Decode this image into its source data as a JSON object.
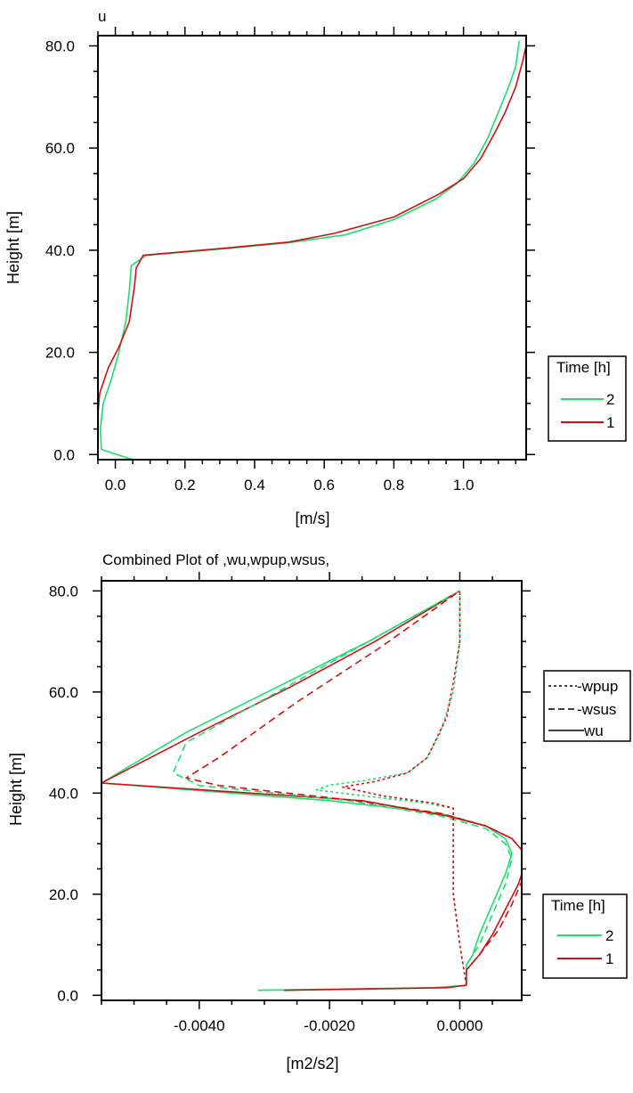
{
  "colors": {
    "time_2": "#18e070",
    "time_1": "#d01010",
    "axis": "#000000"
  },
  "chart_data": [
    {
      "type": "line",
      "title": "u",
      "xlabel": "[m/s]",
      "ylabel": "Height [m]",
      "xlim": [
        -0.05,
        1.18
      ],
      "ylim": [
        -1,
        82
      ],
      "x_ticks": [
        0.0,
        0.2,
        0.4,
        0.6,
        0.8,
        1.0
      ],
      "x_tick_labels": [
        "0.0",
        "0.2",
        "0.4",
        "0.6",
        "0.8",
        "1.0"
      ],
      "y_ticks": [
        0,
        20,
        40,
        60,
        80
      ],
      "y_tick_labels": [
        "0.0",
        "20.0",
        "40.0",
        "60.0",
        "80.0"
      ],
      "legend": {
        "title": "Time [h]",
        "entries": [
          "2",
          "1"
        ],
        "placement": "right"
      },
      "series": [
        {
          "name": "2",
          "color": "#18e070",
          "dash": "solid",
          "points": [
            [
              0.05,
              -1
            ],
            [
              -0.04,
              1
            ],
            [
              -0.043,
              5
            ],
            [
              -0.035,
              10
            ],
            [
              -0.01,
              15
            ],
            [
              0.01,
              20
            ],
            [
              0.03,
              26
            ],
            [
              0.04,
              32
            ],
            [
              0.046,
              37
            ],
            [
              0.09,
              39
            ],
            [
              0.3,
              40.2
            ],
            [
              0.5,
              41.5
            ],
            [
              0.66,
              43
            ],
            [
              0.8,
              46
            ],
            [
              0.92,
              50
            ],
            [
              0.98,
              53
            ],
            [
              1.03,
              57
            ],
            [
              1.07,
              62
            ],
            [
              1.1,
              67
            ],
            [
              1.13,
              72
            ],
            [
              1.15,
              76
            ],
            [
              1.16,
              81
            ]
          ]
        },
        {
          "name": "1",
          "color": "#d01010",
          "dash": "solid",
          "points": [
            [
              -0.05,
              8
            ],
            [
              -0.045,
              12
            ],
            [
              -0.02,
              17
            ],
            [
              0.01,
              21
            ],
            [
              0.04,
              26
            ],
            [
              0.055,
              33
            ],
            [
              0.06,
              36.5
            ],
            [
              0.08,
              39
            ],
            [
              0.3,
              40.3
            ],
            [
              0.5,
              41.6
            ],
            [
              0.63,
              43.3
            ],
            [
              0.8,
              46.5
            ],
            [
              0.93,
              51
            ],
            [
              1.0,
              54
            ],
            [
              1.05,
              58
            ],
            [
              1.09,
              63
            ],
            [
              1.12,
              67
            ],
            [
              1.15,
              72
            ],
            [
              1.17,
              77
            ],
            [
              1.18,
              80
            ]
          ]
        }
      ]
    },
    {
      "type": "line",
      "title": "Combined Plot of ,wu,wpup,wsus,",
      "xlabel": "[m2/s2]",
      "ylabel": "Height [m]",
      "xlim": [
        -0.0055,
        0.00095
      ],
      "ylim": [
        -1,
        82
      ],
      "x_ticks": [
        -0.004,
        -0.002,
        0.0
      ],
      "x_tick_labels": [
        "-0.0040",
        "-0.0020",
        "0.0000"
      ],
      "y_ticks": [
        0,
        20,
        40,
        60,
        80
      ],
      "y_tick_labels": [
        "0.0",
        "20.0",
        "40.0",
        "60.0",
        "80.0"
      ],
      "line_style_legend": {
        "entries": [
          {
            "label": "-wpup",
            "dash": "dotted"
          },
          {
            "label": "-wsus",
            "dash": "dashed"
          },
          {
            "label": "wu",
            "dash": "solid"
          }
        ],
        "placement": "right"
      },
      "legend": {
        "title": "Time [h]",
        "entries": [
          "2",
          "1"
        ],
        "placement": "bottom-right"
      },
      "series": [
        {
          "name": "wu 2",
          "color": "#18e070",
          "dash": "solid",
          "points": [
            [
              -0.0031,
              1
            ],
            [
              -0.0004,
              1.5
            ],
            [
              0.0001,
              2
            ],
            [
              0.0001,
              4
            ],
            [
              0.0001,
              6
            ],
            [
              0.0002,
              8
            ],
            [
              0.0003,
              12
            ],
            [
              0.0005,
              18
            ],
            [
              0.0007,
              24
            ],
            [
              0.0008,
              28
            ],
            [
              0.0007,
              31
            ],
            [
              0.0004,
              33.5
            ],
            [
              -0.0003,
              36
            ],
            [
              -0.002,
              38.5
            ],
            [
              -0.0055,
              42
            ],
            [
              -0.0042,
              52
            ],
            [
              -0.0028,
              61
            ],
            [
              -0.0014,
              70
            ],
            [
              0.0,
              80
            ]
          ]
        },
        {
          "name": "wu 1",
          "color": "#d01010",
          "dash": "solid",
          "points": [
            [
              -0.0027,
              1
            ],
            [
              -0.0002,
              1.5
            ],
            [
              0.0001,
              2
            ],
            [
              0.0001,
              5
            ],
            [
              0.0003,
              8
            ],
            [
              0.0005,
              12
            ],
            [
              0.0007,
              17
            ],
            [
              0.0009,
              22
            ],
            [
              0.001,
              26
            ],
            [
              0.001,
              28
            ],
            [
              0.0008,
              31
            ],
            [
              0.0004,
              33.5
            ],
            [
              -0.0002,
              35.5
            ],
            [
              -0.0015,
              38.5
            ],
            [
              -0.0055,
              42
            ],
            [
              -0.004,
              52
            ],
            [
              -0.0026,
              61
            ],
            [
              -0.0013,
              70
            ],
            [
              0.0,
              80
            ]
          ]
        },
        {
          "name": "wsus 2",
          "color": "#18e070",
          "dash": "dashed",
          "points": [
            [
              0.0001,
              2
            ],
            [
              0.0001,
              6
            ],
            [
              0.0003,
              10
            ],
            [
              0.0005,
              16
            ],
            [
              0.0007,
              22
            ],
            [
              0.0008,
              27
            ],
            [
              0.0007,
              30
            ],
            [
              0.0004,
              33
            ],
            [
              -0.0003,
              35.5
            ],
            [
              -0.0017,
              38.5
            ],
            [
              -0.004,
              41.5
            ],
            [
              -0.0044,
              44
            ],
            [
              -0.0042,
              50
            ],
            [
              -0.0028,
              60
            ],
            [
              -0.0014,
              70
            ],
            [
              0.0,
              80
            ]
          ]
        },
        {
          "name": "wsus 1",
          "color": "#d01010",
          "dash": "dashed",
          "points": [
            [
              0.0001,
              2
            ],
            [
              0.0001,
              5
            ],
            [
              0.0003,
              8
            ],
            [
              0.0006,
              13
            ],
            [
              0.0008,
              18
            ],
            [
              0.001,
              24
            ],
            [
              0.001,
              28
            ],
            [
              0.0008,
              31
            ],
            [
              0.0004,
              33.5
            ],
            [
              -0.0003,
              36
            ],
            [
              -0.0016,
              38.5
            ],
            [
              -0.0037,
              41.5
            ],
            [
              -0.0042,
              43
            ],
            [
              -0.0037,
              47
            ],
            [
              -0.0025,
              58
            ],
            [
              -0.0012,
              69
            ],
            [
              0.0,
              80
            ]
          ]
        },
        {
          "name": "wpup 2",
          "color": "#18e070",
          "dash": "dotted",
          "points": [
            [
              0.0001,
              2
            ],
            [
              0.0,
              10
            ],
            [
              -0.0001,
              20
            ],
            [
              -0.0001,
              30
            ],
            [
              -0.0001,
              37
            ],
            [
              -0.0005,
              38
            ],
            [
              -0.0013,
              39.2
            ],
            [
              -0.0022,
              40.6
            ],
            [
              -0.002,
              41.6
            ],
            [
              -0.0015,
              42.4
            ],
            [
              -0.0008,
              44
            ],
            [
              -0.0005,
              47
            ],
            [
              -0.0003,
              52
            ],
            [
              -0.0001,
              60
            ],
            [
              0.0,
              70
            ],
            [
              0.0,
              80
            ]
          ]
        },
        {
          "name": "wpup 1",
          "color": "#d01010",
          "dash": "dotted",
          "points": [
            [
              0.0001,
              2
            ],
            [
              0.0,
              10
            ],
            [
              -0.0001,
              20
            ],
            [
              -0.0001,
              30
            ],
            [
              -0.0001,
              37
            ],
            [
              -0.0004,
              38
            ],
            [
              -0.0012,
              39.5
            ],
            [
              -0.0018,
              41.2
            ],
            [
              -0.0013,
              42.3
            ],
            [
              -0.0008,
              44
            ],
            [
              -0.0005,
              47
            ],
            [
              -0.0002,
              55
            ],
            [
              -0.0001,
              62
            ],
            [
              0.0,
              70
            ],
            [
              0.0,
              80
            ]
          ]
        }
      ]
    }
  ]
}
